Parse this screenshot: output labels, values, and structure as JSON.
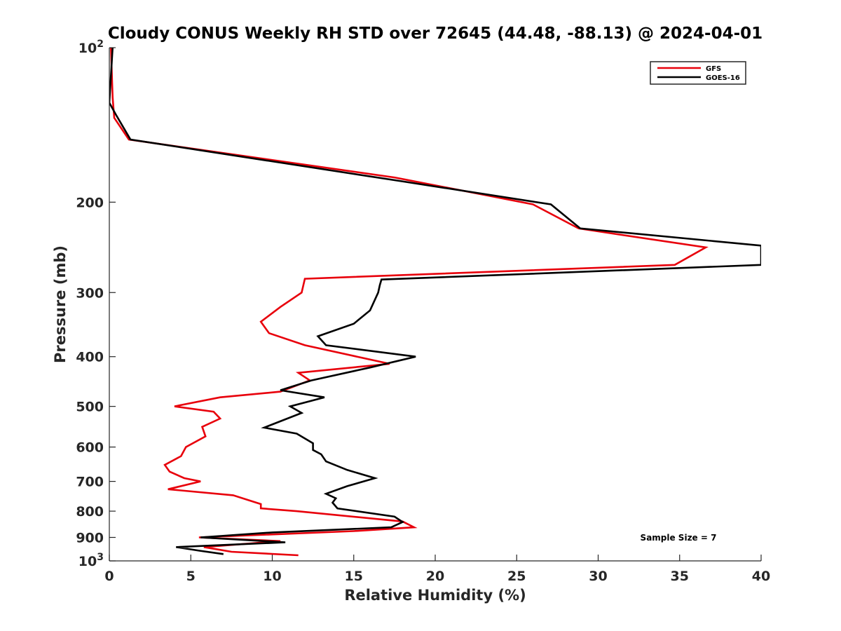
{
  "chart_data": {
    "type": "line",
    "title": "Cloudy CONUS Weekly RH STD over 72645 (44.48, -88.13) @ 2024-04-01",
    "xlabel": "Relative Humidity (%)",
    "ylabel": "Pressure (mb)",
    "xlim": [
      0,
      40
    ],
    "ylim": [
      100,
      1000
    ],
    "y_scale": "log",
    "y_reversed": true,
    "grid": false,
    "legend_position": "top-right",
    "x_ticks": [
      "0",
      "5",
      "10",
      "15",
      "20",
      "25",
      "30",
      "35",
      "40"
    ],
    "y_ticks": [
      {
        "value": 100,
        "label": "10",
        "sup": "2"
      },
      {
        "value": 200,
        "label": "200",
        "sup": ""
      },
      {
        "value": 300,
        "label": "300",
        "sup": ""
      },
      {
        "value": 400,
        "label": "400",
        "sup": ""
      },
      {
        "value": 500,
        "label": "500",
        "sup": ""
      },
      {
        "value": 600,
        "label": "600",
        "sup": ""
      },
      {
        "value": 700,
        "label": "700",
        "sup": ""
      },
      {
        "value": 800,
        "label": "800",
        "sup": ""
      },
      {
        "value": 900,
        "label": "900",
        "sup": ""
      },
      {
        "value": 1000,
        "label": "10",
        "sup": "3"
      }
    ],
    "annotation": "Sample Size = 7",
    "series": [
      {
        "name": "GFS",
        "color": "#e8000b",
        "points": [
          [
            0.1,
            100
          ],
          [
            0.2,
            125
          ],
          [
            0.3,
            137
          ],
          [
            1.2,
            151
          ],
          [
            17.5,
            179
          ],
          [
            26.0,
            202
          ],
          [
            28.8,
            225
          ],
          [
            36.6,
            245
          ],
          [
            34.7,
            265
          ],
          [
            12.0,
            282
          ],
          [
            11.8,
            300
          ],
          [
            10.5,
            320
          ],
          [
            9.3,
            342
          ],
          [
            9.8,
            360
          ],
          [
            12.0,
            380
          ],
          [
            17.2,
            413
          ],
          [
            11.6,
            430
          ],
          [
            12.3,
            445
          ],
          [
            10.5,
            468
          ],
          [
            6.8,
            480
          ],
          [
            4.0,
            500
          ],
          [
            6.4,
            512
          ],
          [
            6.8,
            528
          ],
          [
            5.7,
            548
          ],
          [
            5.9,
            572
          ],
          [
            4.7,
            600
          ],
          [
            4.4,
            625
          ],
          [
            3.4,
            650
          ],
          [
            3.7,
            670
          ],
          [
            4.6,
            690
          ],
          [
            5.6,
            700
          ],
          [
            3.6,
            725
          ],
          [
            7.6,
            745
          ],
          [
            9.3,
            775
          ],
          [
            9.3,
            790
          ],
          [
            11.5,
            800
          ],
          [
            18.0,
            838
          ],
          [
            18.7,
            860
          ],
          [
            15.0,
            875
          ],
          [
            5.5,
            900
          ],
          [
            10.5,
            915
          ],
          [
            5.8,
            940
          ],
          [
            7.5,
            960
          ],
          [
            11.6,
            975
          ]
        ]
      },
      {
        "name": "GOES-16",
        "color": "#000000",
        "points": [
          [
            0.2,
            100
          ],
          [
            0.0,
            128
          ],
          [
            0.4,
            135
          ],
          [
            1.3,
            151
          ],
          [
            17.9,
            182
          ],
          [
            27.1,
            202
          ],
          [
            28.9,
            225
          ],
          [
            40.0,
            243
          ],
          [
            40.0,
            265
          ],
          [
            16.7,
            283
          ],
          [
            16.6,
            290
          ],
          [
            16.5,
            300
          ],
          [
            16.0,
            325
          ],
          [
            15.0,
            345
          ],
          [
            12.8,
            365
          ],
          [
            13.3,
            380
          ],
          [
            18.8,
            400
          ],
          [
            16.0,
            420
          ],
          [
            12.4,
            445
          ],
          [
            10.5,
            465
          ],
          [
            13.2,
            480
          ],
          [
            11.1,
            500
          ],
          [
            11.8,
            515
          ],
          [
            9.5,
            550
          ],
          [
            11.5,
            565
          ],
          [
            12.5,
            590
          ],
          [
            12.5,
            608
          ],
          [
            13.0,
            620
          ],
          [
            13.3,
            640
          ],
          [
            14.6,
            665
          ],
          [
            16.3,
            690
          ],
          [
            14.6,
            715
          ],
          [
            13.3,
            740
          ],
          [
            13.9,
            755
          ],
          [
            13.7,
            770
          ],
          [
            14.0,
            790
          ],
          [
            17.5,
            820
          ],
          [
            18.0,
            840
          ],
          [
            17.3,
            860
          ],
          [
            10.0,
            880
          ],
          [
            5.6,
            900
          ],
          [
            10.8,
            920
          ],
          [
            4.1,
            940
          ],
          [
            5.5,
            955
          ],
          [
            7.0,
            970
          ]
        ]
      }
    ]
  }
}
